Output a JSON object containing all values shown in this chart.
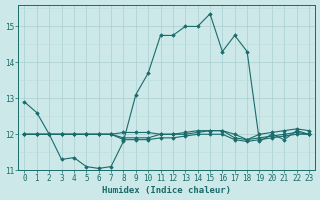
{
  "xlabel": "Humidex (Indice chaleur)",
  "ylabel": "",
  "bg_color": "#cce8e8",
  "line_color": "#1a6b6b",
  "grid_major_color": "#aacfcf",
  "grid_minor_color": "#bbdede",
  "xlim": [
    -0.5,
    23.5
  ],
  "ylim": [
    11.0,
    15.6
  ],
  "yticks": [
    11,
    12,
    13,
    14,
    15
  ],
  "xticks": [
    0,
    1,
    2,
    3,
    4,
    5,
    6,
    7,
    8,
    9,
    10,
    11,
    12,
    13,
    14,
    15,
    16,
    17,
    18,
    19,
    20,
    21,
    22,
    23
  ],
  "series": [
    [
      12.9,
      12.6,
      12.0,
      11.3,
      11.35,
      11.1,
      11.05,
      11.1,
      11.8,
      13.1,
      13.7,
      14.75,
      14.75,
      15.0,
      15.0,
      15.35,
      14.3,
      14.75,
      14.3,
      11.8,
      12.0,
      11.85,
      12.1,
      12.0
    ],
    [
      12.0,
      12.0,
      12.0,
      12.0,
      12.0,
      12.0,
      12.0,
      12.0,
      11.85,
      11.85,
      11.85,
      11.9,
      11.9,
      11.95,
      12.0,
      12.0,
      12.0,
      11.85,
      11.8,
      11.85,
      11.9,
      11.95,
      12.0,
      12.0
    ],
    [
      12.0,
      12.0,
      12.0,
      12.0,
      12.0,
      12.0,
      12.0,
      12.0,
      11.9,
      11.9,
      11.9,
      12.0,
      12.0,
      12.0,
      12.05,
      12.1,
      12.1,
      11.9,
      11.85,
      11.9,
      11.95,
      12.0,
      12.05,
      12.0
    ],
    [
      12.0,
      12.0,
      12.0,
      12.0,
      12.0,
      12.0,
      12.0,
      12.0,
      12.05,
      12.05,
      12.05,
      12.0,
      12.0,
      12.05,
      12.1,
      12.1,
      12.1,
      12.0,
      11.85,
      12.0,
      12.05,
      12.1,
      12.15,
      12.1
    ]
  ]
}
